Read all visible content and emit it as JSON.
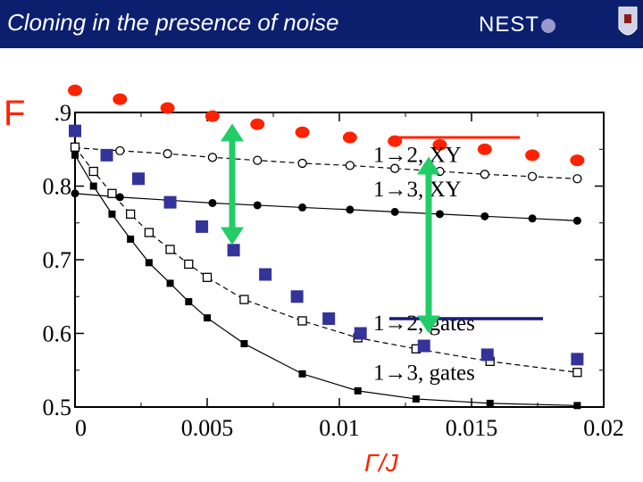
{
  "header": {
    "title": "Cloning in the presence of noise",
    "logo_text": "NEST"
  },
  "colors": {
    "header_bg": "#0b1f6e",
    "red": "#ff2200",
    "blue": "#333399",
    "green": "#22cc66",
    "navy": "#1a1a80"
  },
  "chart_data": {
    "type": "scatter",
    "ylabel": "F",
    "xlabel": "Γ/J",
    "xlim": [
      0,
      0.02
    ],
    "ylim": [
      0.5,
      0.9
    ],
    "x_ticks": [
      "0",
      "0.005",
      "0.01",
      "0.015",
      "0.02"
    ],
    "y_ticks": [
      "0.5",
      "0.6",
      "0.7",
      "0.8",
      ".9"
    ],
    "y_tick_values": [
      0.5,
      0.6,
      0.7,
      0.8,
      0.9
    ],
    "series": [
      {
        "name": "1→2, XY",
        "style": "open-circle-dashed",
        "x": [
          0,
          0.0017,
          0.0035,
          0.0052,
          0.0069,
          0.0086,
          0.0104,
          0.0121,
          0.0138,
          0.0155,
          0.0173,
          0.019
        ],
        "y": [
          0.852,
          0.848,
          0.844,
          0.839,
          0.835,
          0.831,
          0.828,
          0.824,
          0.82,
          0.816,
          0.813,
          0.81
        ]
      },
      {
        "name": "1→3, XY",
        "style": "filled-circle-solid",
        "x": [
          0,
          0.0017,
          0.0035,
          0.0052,
          0.0069,
          0.0086,
          0.0104,
          0.0121,
          0.0138,
          0.0155,
          0.0173,
          0.019
        ],
        "y": [
          0.79,
          0.785,
          0.781,
          0.777,
          0.774,
          0.771,
          0.768,
          0.765,
          0.762,
          0.759,
          0.756,
          0.753
        ]
      },
      {
        "name": "1→2, gates",
        "style": "open-square-dashed",
        "x": [
          0,
          0.0007,
          0.0014,
          0.0021,
          0.0028,
          0.0036,
          0.0043,
          0.005,
          0.0064,
          0.0086,
          0.0107,
          0.0129,
          0.0157,
          0.019
        ],
        "y": [
          0.853,
          0.82,
          0.79,
          0.762,
          0.737,
          0.714,
          0.694,
          0.676,
          0.646,
          0.617,
          0.594,
          0.579,
          0.562,
          0.547
        ]
      },
      {
        "name": "1→3, gates",
        "style": "filled-square-solid",
        "x": [
          0,
          0.0007,
          0.0014,
          0.0021,
          0.0028,
          0.0036,
          0.0043,
          0.005,
          0.0064,
          0.0086,
          0.0107,
          0.0129,
          0.0157,
          0.019
        ],
        "y": [
          0.842,
          0.8,
          0.762,
          0.728,
          0.696,
          0.668,
          0.643,
          0.621,
          0.586,
          0.545,
          0.522,
          0.511,
          0.505,
          0.502
        ]
      },
      {
        "name": "",
        "style": "red-dot",
        "x": [
          0,
          0.0017,
          0.0035,
          0.0052,
          0.0069,
          0.0086,
          0.0104,
          0.0121,
          0.0138,
          0.0155,
          0.0173,
          0.019
        ],
        "y": [
          0.93,
          0.918,
          0.906,
          0.895,
          0.884,
          0.873,
          0.866,
          0.861,
          0.856,
          0.85,
          0.842,
          0.835
        ]
      },
      {
        "name": "",
        "style": "blue-square",
        "x": [
          0,
          0.0012,
          0.0024,
          0.0036,
          0.0048,
          0.006,
          0.0072,
          0.0084,
          0.0096,
          0.0108,
          0.0132,
          0.0156,
          0.019
        ],
        "y": [
          0.875,
          0.842,
          0.81,
          0.778,
          0.745,
          0.713,
          0.68,
          0.65,
          0.62,
          0.6,
          0.583,
          0.571,
          0.565
        ]
      }
    ],
    "annotations": [
      "1→2, XY",
      "1→3, XY",
      "1→2, gates",
      "1→3, gates"
    ],
    "grid": false,
    "legend": "inline annotations"
  }
}
